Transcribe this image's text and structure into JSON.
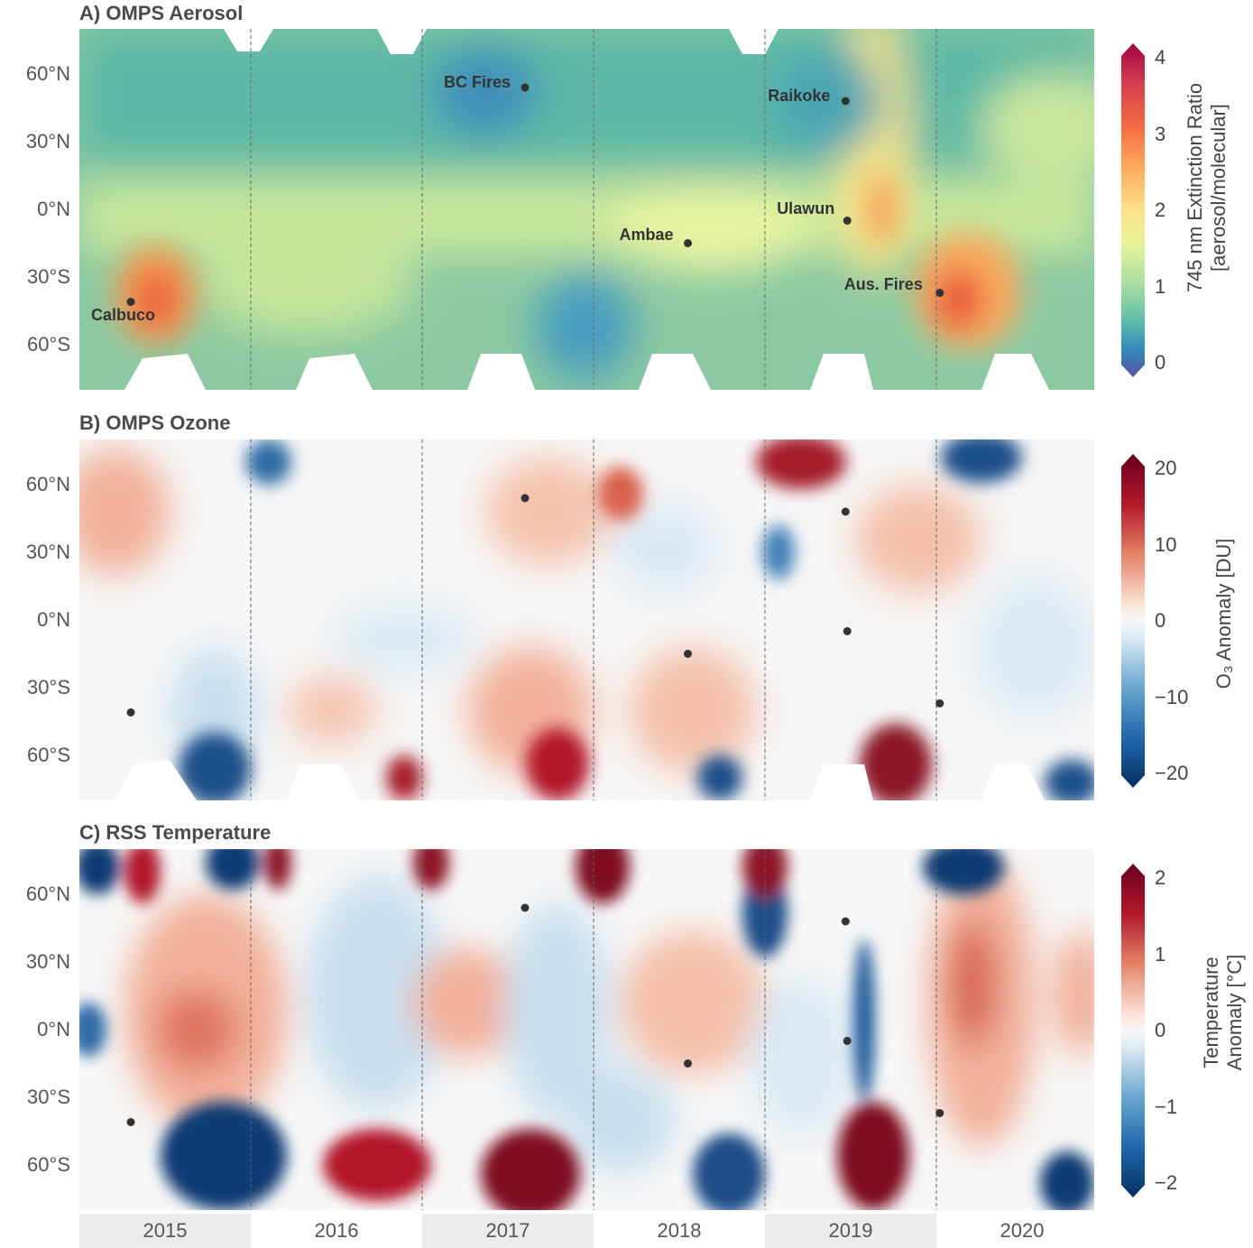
{
  "panels": [
    {
      "id": "A",
      "title": "A) OMPS Aerosol",
      "colorbar": {
        "label_line1": "745 nm Extinction Ratio",
        "label_line2": "[aerosol/molecular]",
        "ticks": [
          "4",
          "3",
          "2",
          "1",
          "0"
        ],
        "colors": [
          "#9e0142",
          "#d53e4f",
          "#f46d43",
          "#fdae61",
          "#fee08b",
          "#ffffbf",
          "#e6f598",
          "#abdda4",
          "#66c2a5",
          "#3288bd",
          "#5e4fa2"
        ]
      }
    },
    {
      "id": "B",
      "title": "B) OMPS Ozone",
      "colorbar": {
        "label": "O₃ Anomaly [DU]",
        "ticks": [
          "20",
          "10",
          "0",
          "−10",
          "−20"
        ]
      }
    },
    {
      "id": "C",
      "title": "C) RSS Temperature",
      "colorbar": {
        "label_line1": "Temperature",
        "label_line2": "Anomaly [°C]",
        "ticks": [
          "2",
          "1",
          "0",
          "−1",
          "−2"
        ]
      }
    }
  ],
  "latitude_ticks": [
    "60°N",
    "30°N",
    "0°N",
    "30°S",
    "60°S"
  ],
  "years": [
    "2015",
    "2016",
    "2017",
    "2018",
    "2019",
    "2020"
  ],
  "events": [
    {
      "name": "Calbuco",
      "year": 2015.3,
      "lat": -41
    },
    {
      "name": "BC Fires",
      "year": 2017.6,
      "lat": 54
    },
    {
      "name": "Ambae",
      "year": 2018.55,
      "lat": -15
    },
    {
      "name": "Raikoke",
      "year": 2019.47,
      "lat": 48
    },
    {
      "name": "Ulawun",
      "year": 2019.48,
      "lat": -5
    },
    {
      "name": "Aus. Fires",
      "year": 2020.02,
      "lat": -37
    }
  ],
  "chart_data": [
    {
      "type": "heatmap",
      "title": "A) OMPS Aerosol",
      "x_range": [
        2015,
        2021
      ],
      "y_range": [
        -80,
        80
      ],
      "zlim": [
        0,
        4
      ],
      "zlabel": "745 nm Extinction Ratio [aerosol/molecular]",
      "features": [
        {
          "year": 2015.35,
          "lat": -38,
          "value": 3.2
        },
        {
          "year": 2019.45,
          "lat": 10,
          "value": 2.6
        },
        {
          "year": 2020.15,
          "lat": -35,
          "value": 3.4
        },
        {
          "year": 2018.6,
          "lat": -2,
          "value": 2.2
        }
      ]
    },
    {
      "type": "heatmap",
      "title": "B) OMPS Ozone",
      "x_range": [
        2015,
        2021
      ],
      "y_range": [
        -80,
        80
      ],
      "zlim": [
        -20,
        20
      ],
      "zlabel": "O3 Anomaly [DU]",
      "features": [
        {
          "year": 2019.25,
          "lat": 75,
          "value": 20
        },
        {
          "year": 2020.3,
          "lat": 75,
          "value": -20
        },
        {
          "year": 2015.7,
          "lat": -70,
          "value": -20
        },
        {
          "year": 2019.8,
          "lat": -68,
          "value": 20
        },
        {
          "year": 2017.8,
          "lat": -68,
          "value": 18
        },
        {
          "year": 2016.85,
          "lat": -72,
          "value": 18
        },
        {
          "year": 2018.7,
          "lat": -72,
          "value": -18
        },
        {
          "year": 2020.8,
          "lat": -70,
          "value": -18
        }
      ]
    },
    {
      "type": "heatmap",
      "title": "C) RSS Temperature",
      "x_range": [
        2015,
        2021
      ],
      "y_range": [
        -80,
        80
      ],
      "zlim": [
        -2.5,
        2.5
      ],
      "zlabel": "Temperature Anomaly [°C]",
      "features": [
        {
          "year": 2015.7,
          "lat": -65,
          "value": -2.5
        },
        {
          "year": 2016.85,
          "lat": -72,
          "value": 2.4
        },
        {
          "year": 2017.8,
          "lat": -70,
          "value": 2.5
        },
        {
          "year": 2019.75,
          "lat": -68,
          "value": 2.5
        },
        {
          "year": 2018.8,
          "lat": -75,
          "value": -2.2
        },
        {
          "year": 2020.2,
          "lat": 30,
          "value": 1.6
        },
        {
          "year": 2019.65,
          "lat": -20,
          "value": -2
        }
      ]
    }
  ]
}
